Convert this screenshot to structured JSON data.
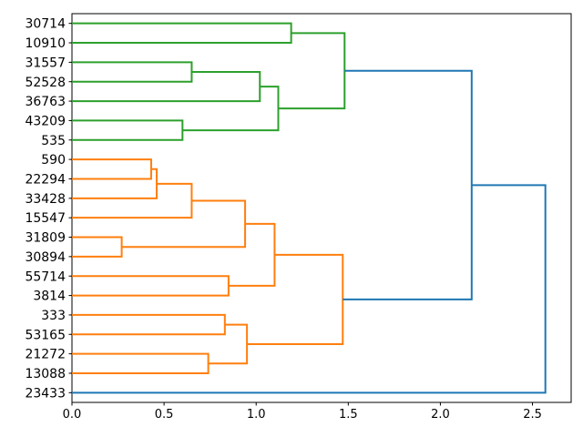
{
  "figure": {
    "background": "#ffffff"
  },
  "chart_data": {
    "type": "dendrogram",
    "orientation": "left",
    "title": "",
    "xlabel": "",
    "ylabel": "",
    "grid": false,
    "legend": null,
    "xlim": [
      0,
      2.71
    ],
    "xticks": [
      "0.0",
      "0.5",
      "1.0",
      "1.5",
      "2.0",
      "2.5"
    ],
    "xtick_values": [
      0.0,
      0.5,
      1.0,
      1.5,
      2.0,
      2.5
    ],
    "leaves": [
      "30714",
      "10910",
      "31557",
      "52528",
      "36763",
      "43209",
      "535",
      "590",
      "22294",
      "33428",
      "15547",
      "31809",
      "30894",
      "55714",
      "3814",
      "333",
      "53165",
      "21272",
      "13088",
      "23433"
    ],
    "links": [
      {
        "a": "30714",
        "b": "10910",
        "distance": 1.19,
        "color": "green"
      },
      {
        "a": "31557",
        "b": "52528",
        "distance": 0.65,
        "color": "green"
      },
      {
        "a": "@1",
        "b": "36763",
        "distance": 1.02,
        "color": "green"
      },
      {
        "a": "43209",
        "b": "535",
        "distance": 0.6,
        "color": "green"
      },
      {
        "a": "@2",
        "b": "@3",
        "distance": 1.12,
        "color": "green"
      },
      {
        "a": "@0",
        "b": "@4",
        "distance": 1.48,
        "color": "green"
      },
      {
        "a": "590",
        "b": "22294",
        "distance": 0.43,
        "color": "orange"
      },
      {
        "a": "@6",
        "b": "33428",
        "distance": 0.46,
        "color": "orange"
      },
      {
        "a": "@7",
        "b": "15547",
        "distance": 0.65,
        "color": "orange"
      },
      {
        "a": "31809",
        "b": "30894",
        "distance": 0.27,
        "color": "orange"
      },
      {
        "a": "@8",
        "b": "@9",
        "distance": 0.94,
        "color": "orange"
      },
      {
        "a": "55714",
        "b": "3814",
        "distance": 0.85,
        "color": "orange"
      },
      {
        "a": "@10",
        "b": "@11",
        "distance": 1.1,
        "color": "orange"
      },
      {
        "a": "333",
        "b": "53165",
        "distance": 0.83,
        "color": "orange"
      },
      {
        "a": "21272",
        "b": "13088",
        "distance": 0.74,
        "color": "orange"
      },
      {
        "a": "@13",
        "b": "@14",
        "distance": 0.95,
        "color": "orange"
      },
      {
        "a": "@12",
        "b": "@15",
        "distance": 1.47,
        "color": "orange"
      },
      {
        "a": "@5",
        "b": "@16",
        "distance": 2.17,
        "color": "blue"
      },
      {
        "a": "@17",
        "b": "23433",
        "distance": 2.57,
        "color": "blue"
      }
    ],
    "colors": {
      "blue": "#1f77b4",
      "orange": "#ff7f0e",
      "green": "#2ca02c"
    },
    "line_width": 2
  }
}
